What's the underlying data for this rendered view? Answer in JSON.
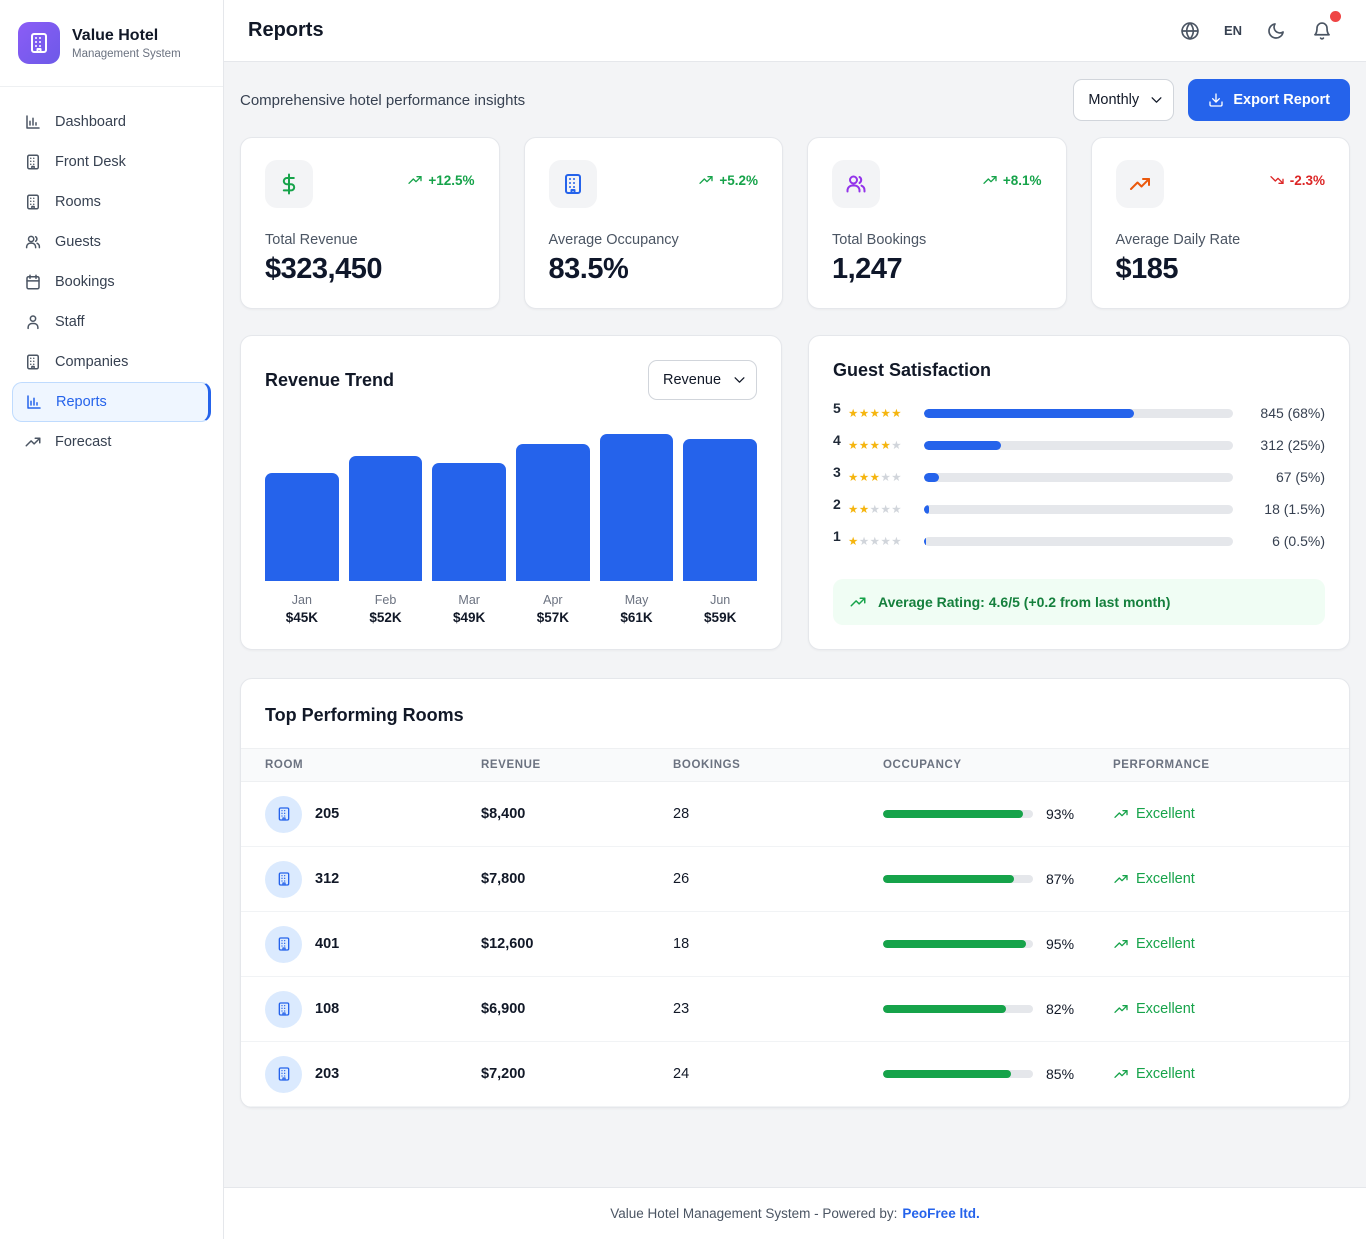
{
  "brand": {
    "name": "Value Hotel",
    "subtitle": "Management System",
    "icon": "building"
  },
  "sidebar": [
    {
      "label": "Dashboard",
      "icon": "bar-chart",
      "active": false
    },
    {
      "label": "Front Desk",
      "icon": "building",
      "active": false
    },
    {
      "label": "Rooms",
      "icon": "building",
      "active": false
    },
    {
      "label": "Guests",
      "icon": "users",
      "active": false
    },
    {
      "label": "Bookings",
      "icon": "calendar",
      "active": false
    },
    {
      "label": "Staff",
      "icon": "user",
      "active": false
    },
    {
      "label": "Companies",
      "icon": "building",
      "active": false
    },
    {
      "label": "Reports",
      "icon": "bar-chart",
      "active": true
    },
    {
      "label": "Forecast",
      "icon": "trending-up",
      "active": false
    }
  ],
  "header": {
    "title": "Reports",
    "language": "EN"
  },
  "toolbar": {
    "subtitle": "Comprehensive hotel performance insights",
    "period_value": "Monthly",
    "export_label": "Export Report"
  },
  "stats": [
    {
      "label": "Total Revenue",
      "value": "$323,450",
      "trend": "+12.5%",
      "direction": "up",
      "icon": "dollar",
      "icon_color": "#16a34a"
    },
    {
      "label": "Average Occupancy",
      "value": "83.5%",
      "trend": "+5.2%",
      "direction": "up",
      "icon": "building",
      "icon_color": "#2563eb"
    },
    {
      "label": "Total Bookings",
      "value": "1,247",
      "trend": "+8.1%",
      "direction": "up",
      "icon": "users",
      "icon_color": "#9333ea"
    },
    {
      "label": "Average Daily Rate",
      "value": "$185",
      "trend": "-2.3%",
      "direction": "down",
      "icon": "trending-up",
      "icon_color": "#ea580c"
    }
  ],
  "chart_data": {
    "type": "bar",
    "title": "Revenue Trend",
    "metric_select_value": "Revenue",
    "categories": [
      "Jan",
      "Feb",
      "Mar",
      "Apr",
      "May",
      "Jun"
    ],
    "values": [
      45000,
      52000,
      49000,
      57000,
      61000,
      59000
    ],
    "value_labels": [
      "$45K",
      "$52K",
      "$49K",
      "$57K",
      "$61K",
      "$59K"
    ],
    "ylim": [
      0,
      61000
    ],
    "bar_color": "#2563eb"
  },
  "satisfaction": {
    "title": "Guest Satisfaction",
    "rows": [
      {
        "rating": 5,
        "pct": 68,
        "label": "845 (68%)"
      },
      {
        "rating": 4,
        "pct": 25,
        "label": "312 (25%)"
      },
      {
        "rating": 3,
        "pct": 5,
        "label": "67 (5%)"
      },
      {
        "rating": 2,
        "pct": 1.5,
        "label": "18 (1.5%)"
      },
      {
        "rating": 1,
        "pct": 0.5,
        "label": "6 (0.5%)"
      }
    ],
    "note": "Average Rating: 4.6/5 (+0.2 from last month)"
  },
  "rooms": {
    "title": "Top Performing Rooms",
    "columns": [
      "Room",
      "Revenue",
      "Bookings",
      "Occupancy",
      "Performance"
    ],
    "rows": [
      {
        "room": "205",
        "revenue": "$8,400",
        "bookings": "28",
        "occupancy": 93,
        "occupancy_label": "93%",
        "performance": "Excellent"
      },
      {
        "room": "312",
        "revenue": "$7,800",
        "bookings": "26",
        "occupancy": 87,
        "occupancy_label": "87%",
        "performance": "Excellent"
      },
      {
        "room": "401",
        "revenue": "$12,600",
        "bookings": "18",
        "occupancy": 95,
        "occupancy_label": "95%",
        "performance": "Excellent"
      },
      {
        "room": "108",
        "revenue": "$6,900",
        "bookings": "23",
        "occupancy": 82,
        "occupancy_label": "82%",
        "performance": "Excellent"
      },
      {
        "room": "203",
        "revenue": "$7,200",
        "bookings": "24",
        "occupancy": 85,
        "occupancy_label": "85%",
        "performance": "Excellent"
      }
    ]
  },
  "footer": {
    "text": "Value Hotel Management System - Powered by:",
    "link": "PeoFree ltd."
  },
  "colors": {
    "primary": "#2563eb",
    "primary_light": "#eff6ff",
    "positive": "#16a34a",
    "negative": "#dc2626",
    "negative_bright": "#ef4444",
    "star": "#f5b50f"
  }
}
